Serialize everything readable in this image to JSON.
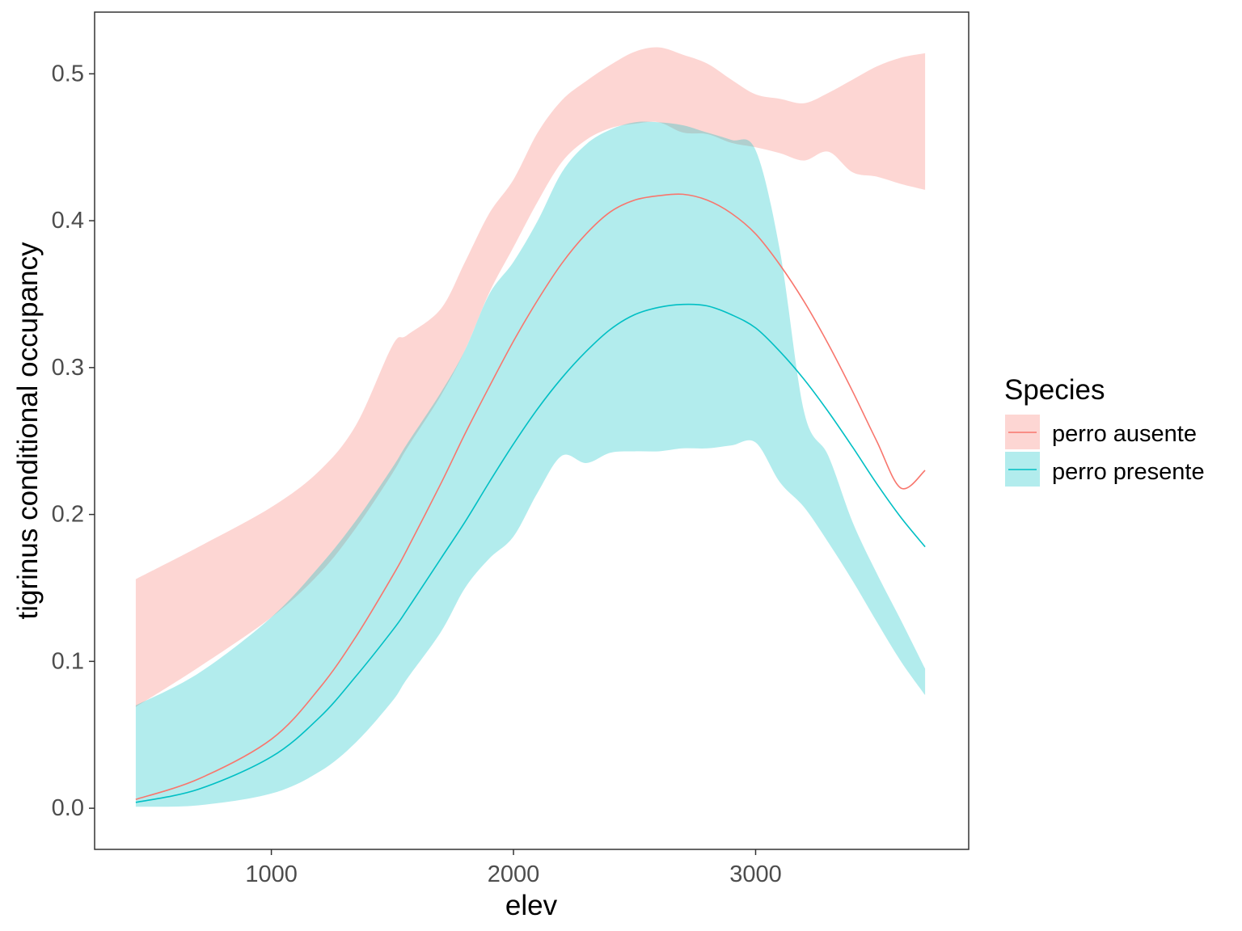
{
  "chart_data": {
    "type": "area",
    "xlabel": "elev",
    "ylabel": "tigrinus conditional occupancy",
    "xlim": [
      270,
      3880
    ],
    "ylim": [
      -0.028,
      0.542
    ],
    "x_ticks": [
      1000,
      2000,
      3000
    ],
    "x_tick_labels": [
      "1000",
      "2000",
      "3000"
    ],
    "y_ticks": [
      0.0,
      0.1,
      0.2,
      0.3,
      0.4,
      0.5
    ],
    "y_tick_labels": [
      "0.0",
      "0.1",
      "0.2",
      "0.3",
      "0.4",
      "0.5"
    ],
    "grid": false,
    "legend": {
      "title": "Species",
      "position": "right"
    },
    "series": [
      {
        "name": "perro ausente",
        "color": "#F8766D",
        "x": [
          440,
          700,
          1000,
          1200,
          1350,
          1500,
          1560,
          1700,
          1800,
          1900,
          2000,
          2100,
          2200,
          2300,
          2400,
          2500,
          2600,
          2700,
          2800,
          2900,
          3000,
          3100,
          3200,
          3300,
          3400,
          3500,
          3600,
          3700
        ],
        "y": [
          0.006,
          0.02,
          0.047,
          0.082,
          0.117,
          0.158,
          0.176,
          0.221,
          0.255,
          0.287,
          0.318,
          0.346,
          0.371,
          0.391,
          0.406,
          0.414,
          0.417,
          0.418,
          0.414,
          0.405,
          0.391,
          0.37,
          0.345,
          0.316,
          0.284,
          0.25,
          0.218,
          0.23
        ],
        "lower": [
          0.069,
          0.096,
          0.13,
          0.16,
          0.191,
          0.228,
          0.245,
          0.281,
          0.312,
          0.351,
          0.382,
          0.413,
          0.44,
          0.455,
          0.463,
          0.466,
          0.467,
          0.46,
          0.459,
          0.453,
          0.45,
          0.446,
          0.441,
          0.447,
          0.433,
          0.43,
          0.425,
          0.421
        ],
        "upper": [
          0.156,
          0.178,
          0.205,
          0.23,
          0.261,
          0.315,
          0.322,
          0.34,
          0.372,
          0.405,
          0.428,
          0.46,
          0.482,
          0.495,
          0.506,
          0.515,
          0.518,
          0.513,
          0.507,
          0.496,
          0.486,
          0.483,
          0.48,
          0.487,
          0.496,
          0.505,
          0.511,
          0.514
        ]
      },
      {
        "name": "perro presente",
        "color": "#00BFC4",
        "x": [
          440,
          700,
          1000,
          1200,
          1350,
          1500,
          1560,
          1700,
          1800,
          1900,
          2000,
          2100,
          2200,
          2300,
          2400,
          2500,
          2600,
          2700,
          2800,
          2900,
          3000,
          3100,
          3200,
          3300,
          3400,
          3500,
          3600,
          3700
        ],
        "y": [
          0.004,
          0.013,
          0.035,
          0.062,
          0.09,
          0.121,
          0.135,
          0.17,
          0.195,
          0.222,
          0.248,
          0.272,
          0.293,
          0.311,
          0.326,
          0.336,
          0.341,
          0.343,
          0.342,
          0.336,
          0.327,
          0.311,
          0.292,
          0.27,
          0.246,
          0.221,
          0.198,
          0.178
        ],
        "lower": [
          0.001,
          0.002,
          0.01,
          0.025,
          0.045,
          0.073,
          0.088,
          0.12,
          0.15,
          0.17,
          0.185,
          0.215,
          0.24,
          0.235,
          0.242,
          0.243,
          0.243,
          0.245,
          0.245,
          0.247,
          0.249,
          0.222,
          0.205,
          0.181,
          0.155,
          0.127,
          0.1,
          0.077
        ],
        "upper": [
          0.07,
          0.092,
          0.13,
          0.165,
          0.196,
          0.232,
          0.248,
          0.283,
          0.312,
          0.35,
          0.372,
          0.4,
          0.433,
          0.452,
          0.462,
          0.467,
          0.467,
          0.465,
          0.46,
          0.455,
          0.448,
          0.38,
          0.27,
          0.24,
          0.195,
          0.16,
          0.128,
          0.095
        ]
      }
    ]
  }
}
